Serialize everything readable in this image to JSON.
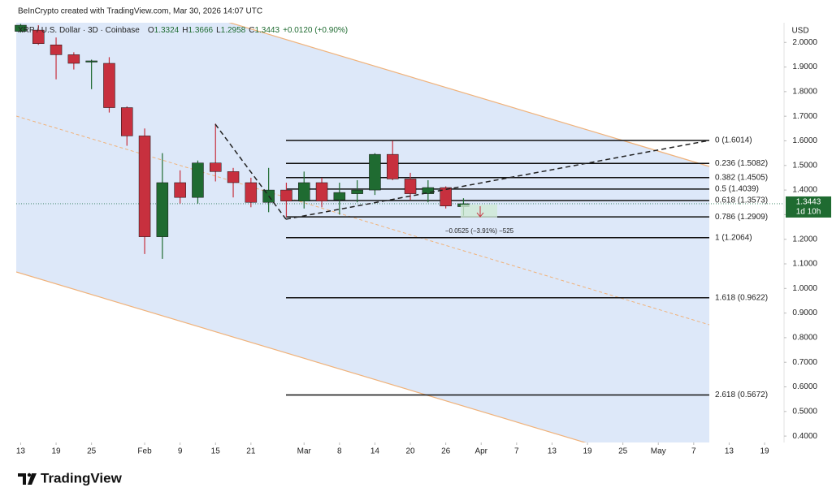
{
  "header": {
    "credit": "BeInCrypto created with TradingView.com, Mar 30, 2026 14:07 UTC"
  },
  "footer": {
    "brand": "TradingView"
  },
  "chart_data": {
    "type": "candlestick",
    "symbol": "XRP / U.S. Dollar · 3D · Coinbase",
    "ohlc_labels": [
      "O",
      "H",
      "L",
      "C"
    ],
    "change": "+0.0120 (+0.90%)",
    "countdown": "1d 10h",
    "y_unit": "USD",
    "measure_label": "−0.0525 (−3.91%) −525",
    "up_color": "#1f6b31",
    "down_color": "#c7303e",
    "categories": [
      null,
      null,
      null,
      null,
      null,
      null,
      null,
      null,
      null,
      null,
      null,
      null,
      null,
      null,
      null,
      null,
      null,
      null,
      null,
      null,
      null,
      null,
      null,
      null,
      null,
      null
    ],
    "open": [
      2.045,
      2.05,
      1.99,
      1.95,
      1.92,
      1.915,
      1.735,
      1.62,
      1.21,
      1.43,
      1.37,
      1.51,
      1.475,
      1.43,
      1.35,
      1.4,
      1.355,
      1.43,
      1.36,
      1.385,
      1.4,
      1.545,
      1.445,
      1.385,
      1.41,
      1.3324
    ],
    "high": [
      2.075,
      2.07,
      2.02,
      1.96,
      1.93,
      1.94,
      1.74,
      1.65,
      1.55,
      1.48,
      1.52,
      1.67,
      1.49,
      1.45,
      1.49,
      1.43,
      1.475,
      1.45,
      1.43,
      1.44,
      1.55,
      1.6,
      1.47,
      1.44,
      1.415,
      1.3666
    ],
    "low": [
      2.04,
      1.99,
      1.85,
      1.89,
      1.81,
      1.715,
      1.58,
      1.14,
      1.12,
      1.345,
      1.345,
      1.435,
      1.37,
      1.33,
      1.31,
      1.29,
      1.325,
      1.33,
      1.3,
      1.35,
      1.38,
      1.44,
      1.36,
      1.35,
      1.325,
      1.2958
    ],
    "close": [
      2.07,
      1.995,
      1.95,
      1.915,
      1.925,
      1.735,
      1.62,
      1.21,
      1.43,
      1.37,
      1.51,
      1.475,
      1.43,
      1.35,
      1.4,
      1.355,
      1.43,
      1.355,
      1.39,
      1.4,
      1.545,
      1.445,
      1.385,
      1.41,
      1.335,
      1.3443
    ],
    "xlim": [
      -0.25,
      43.1
    ],
    "xticks": [
      {
        "value": 0,
        "label": "13"
      },
      {
        "value": 2,
        "label": "19"
      },
      {
        "value": 4,
        "label": "25"
      },
      {
        "value": 7,
        "label": "Feb"
      },
      {
        "value": 9,
        "label": "9"
      },
      {
        "value": 11,
        "label": "15"
      },
      {
        "value": 13,
        "label": "21"
      },
      {
        "value": 16,
        "label": "Mar"
      },
      {
        "value": 18,
        "label": "8"
      },
      {
        "value": 20,
        "label": "14"
      },
      {
        "value": 22,
        "label": "20"
      },
      {
        "value": 24,
        "label": "26"
      },
      {
        "value": 26,
        "label": "Apr"
      },
      {
        "value": 28,
        "label": "7"
      },
      {
        "value": 30,
        "label": "13"
      },
      {
        "value": 32,
        "label": "19"
      },
      {
        "value": 34,
        "label": "25"
      },
      {
        "value": 36,
        "label": "May"
      },
      {
        "value": 38,
        "label": "7"
      },
      {
        "value": 40,
        "label": "13"
      },
      {
        "value": 42,
        "label": "19"
      }
    ],
    "ylim": [
      0.374,
      2.08
    ],
    "yticks": [
      {
        "value": 2.0,
        "label": "2.0000"
      },
      {
        "value": 1.9,
        "label": "1.9000"
      },
      {
        "value": 1.8,
        "label": "1.8000"
      },
      {
        "value": 1.7,
        "label": "1.7000"
      },
      {
        "value": 1.6,
        "label": "1.6000"
      },
      {
        "value": 1.5,
        "label": "1.5000"
      },
      {
        "value": 1.4,
        "label": "1.4000"
      },
      {
        "value": 1.3,
        "label": "1.3000"
      },
      {
        "value": 1.2,
        "label": "1.2000"
      },
      {
        "value": 1.1,
        "label": "1.1000"
      },
      {
        "value": 1.0,
        "label": "1.0000"
      },
      {
        "value": 0.9,
        "label": "0.9000"
      },
      {
        "value": 0.8,
        "label": "0.8000"
      },
      {
        "value": 0.7,
        "label": "0.7000"
      },
      {
        "value": 0.6,
        "label": "0.6000"
      },
      {
        "value": 0.5,
        "label": "0.5000"
      },
      {
        "value": 0.4,
        "label": "0.4000"
      }
    ],
    "fib_levels": [
      {
        "value": 1.6014,
        "label": "0 (1.6014)"
      },
      {
        "value": 1.5082,
        "label": "0.236 (1.5082)"
      },
      {
        "value": 1.4505,
        "label": "0.382 (1.4505)"
      },
      {
        "value": 1.4039,
        "label": "0.5 (1.4039)"
      },
      {
        "value": 1.3573,
        "label": "0.618 (1.3573)"
      },
      {
        "value": 1.2909,
        "label": "0.786 (1.2909)"
      },
      {
        "value": 1.2064,
        "label": "1 (1.2064)"
      },
      {
        "value": 0.9622,
        "label": "1.618 (0.9622)"
      },
      {
        "value": 0.5672,
        "label": "2.618 (0.5672)"
      }
    ]
  }
}
